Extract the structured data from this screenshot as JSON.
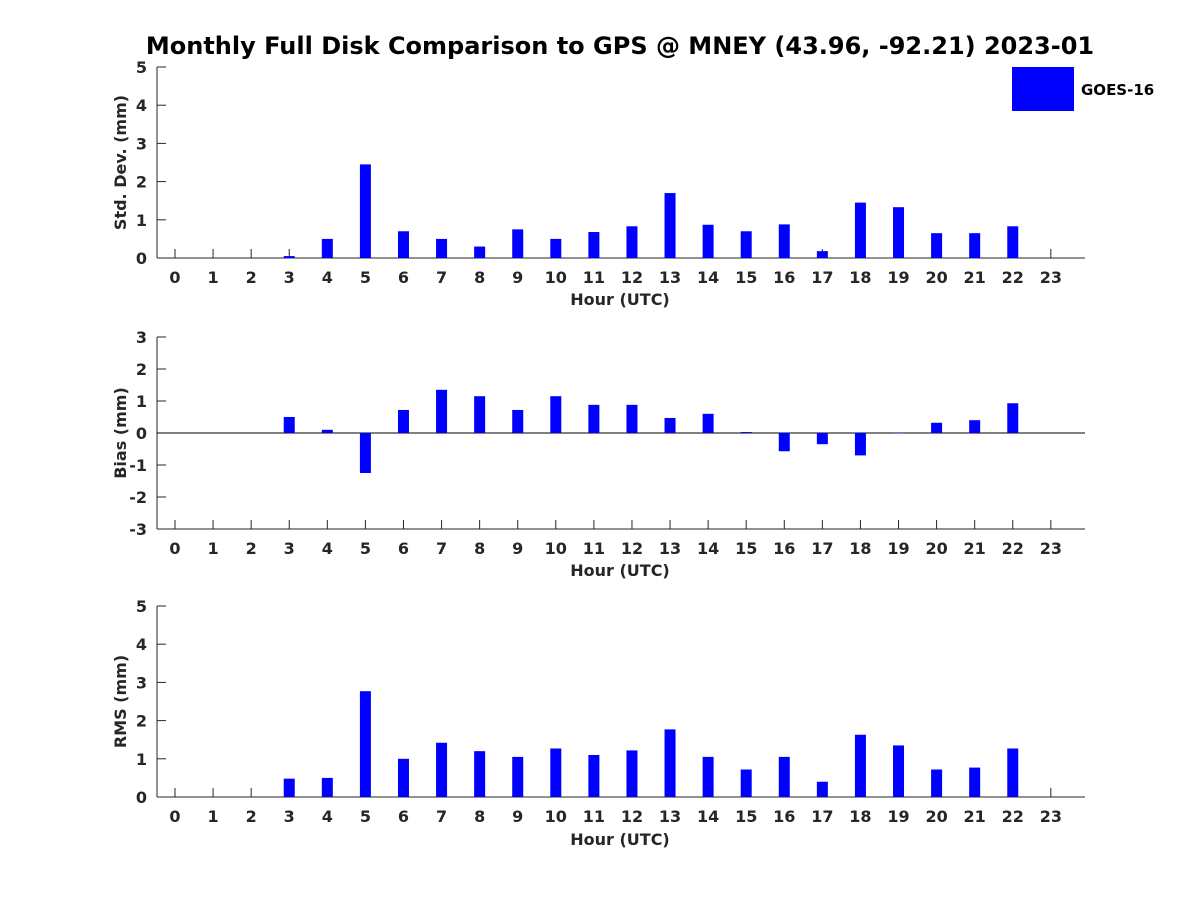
{
  "title": "Monthly Full Disk Comparison to GPS @ MNEY (43.96, -92.21) 2023-01",
  "legend": {
    "label": "GOES-16",
    "color": "#0000ff"
  },
  "chart_data": [
    {
      "type": "bar",
      "name": "std_dev",
      "ylabel": "Std. Dev. (mm)",
      "xlabel": "Hour (UTC)",
      "ylim": [
        0,
        5
      ],
      "yticks": [
        0,
        1,
        2,
        3,
        4,
        5
      ],
      "categories": [
        "0",
        "1",
        "2",
        "3",
        "4",
        "5",
        "6",
        "7",
        "8",
        "9",
        "10",
        "11",
        "12",
        "13",
        "14",
        "15",
        "16",
        "17",
        "18",
        "19",
        "20",
        "21",
        "22",
        "23"
      ],
      "series": [
        {
          "name": "GOES-16",
          "color": "#0000ff",
          "values": [
            null,
            null,
            null,
            0.05,
            0.5,
            2.45,
            0.7,
            0.5,
            0.3,
            0.75,
            0.5,
            0.68,
            0.83,
            1.7,
            0.87,
            0.7,
            0.88,
            0.18,
            1.45,
            1.33,
            0.65,
            0.65,
            0.83,
            null
          ]
        }
      ]
    },
    {
      "type": "bar",
      "name": "bias",
      "ylabel": "Bias (mm)",
      "xlabel": "Hour (UTC)",
      "ylim": [
        -3,
        3
      ],
      "yticks": [
        -3,
        -2,
        -1,
        0,
        1,
        2,
        3
      ],
      "categories": [
        "0",
        "1",
        "2",
        "3",
        "4",
        "5",
        "6",
        "7",
        "8",
        "9",
        "10",
        "11",
        "12",
        "13",
        "14",
        "15",
        "16",
        "17",
        "18",
        "19",
        "20",
        "21",
        "22",
        "23"
      ],
      "series": [
        {
          "name": "GOES-16",
          "color": "#0000ff",
          "values": [
            null,
            null,
            null,
            0.5,
            0.1,
            -1.25,
            0.72,
            1.35,
            1.15,
            0.72,
            1.15,
            0.88,
            0.88,
            0.47,
            0.6,
            0.03,
            -0.57,
            -0.35,
            -0.7,
            0.0,
            0.32,
            0.4,
            0.93,
            null
          ]
        }
      ]
    },
    {
      "type": "bar",
      "name": "rms",
      "ylabel": "RMS (mm)",
      "xlabel": "Hour (UTC)",
      "ylim": [
        0,
        5
      ],
      "yticks": [
        0,
        1,
        2,
        3,
        4,
        5
      ],
      "categories": [
        "0",
        "1",
        "2",
        "3",
        "4",
        "5",
        "6",
        "7",
        "8",
        "9",
        "10",
        "11",
        "12",
        "13",
        "14",
        "15",
        "16",
        "17",
        "18",
        "19",
        "20",
        "21",
        "22",
        "23"
      ],
      "series": [
        {
          "name": "GOES-16",
          "color": "#0000ff",
          "values": [
            null,
            null,
            null,
            0.48,
            0.5,
            2.77,
            1.0,
            1.42,
            1.2,
            1.05,
            1.27,
            1.1,
            1.22,
            1.77,
            1.05,
            0.72,
            1.05,
            0.4,
            1.63,
            1.35,
            0.72,
            0.77,
            1.27,
            null
          ]
        }
      ]
    }
  ]
}
